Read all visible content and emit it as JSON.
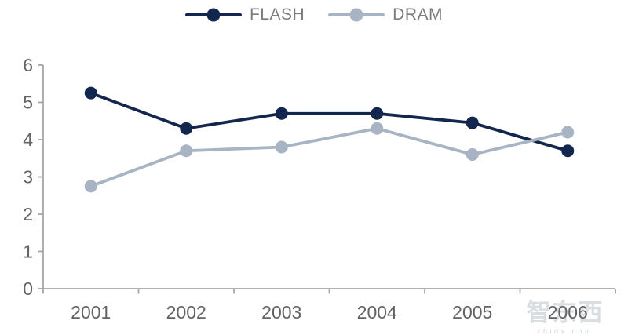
{
  "chart_data": {
    "type": "line",
    "categories": [
      "2001",
      "2002",
      "2003",
      "2004",
      "2005",
      "2006"
    ],
    "series": [
      {
        "name": "FLASH",
        "color": "#13264d",
        "values": [
          5.25,
          4.3,
          4.7,
          4.7,
          4.45,
          3.7
        ]
      },
      {
        "name": "DRAM",
        "color": "#a8b4c4",
        "values": [
          2.75,
          3.7,
          3.8,
          4.3,
          3.6,
          4.2
        ]
      }
    ],
    "title": "",
    "xlabel": "",
    "ylabel": "",
    "ylim": [
      0,
      6
    ],
    "yticks": [
      0,
      1,
      2,
      3,
      4,
      5,
      6
    ],
    "grid": false,
    "legend_position": "top-center",
    "axis_color": "#a6a6a6",
    "tick_label_color": "#636363",
    "legend_label_color": "#7b7b7b",
    "marker_style": "circle"
  },
  "watermark": {
    "logo_text": "智东西",
    "sub_text": "zhidx.com",
    "color": "#a9b1b9"
  }
}
